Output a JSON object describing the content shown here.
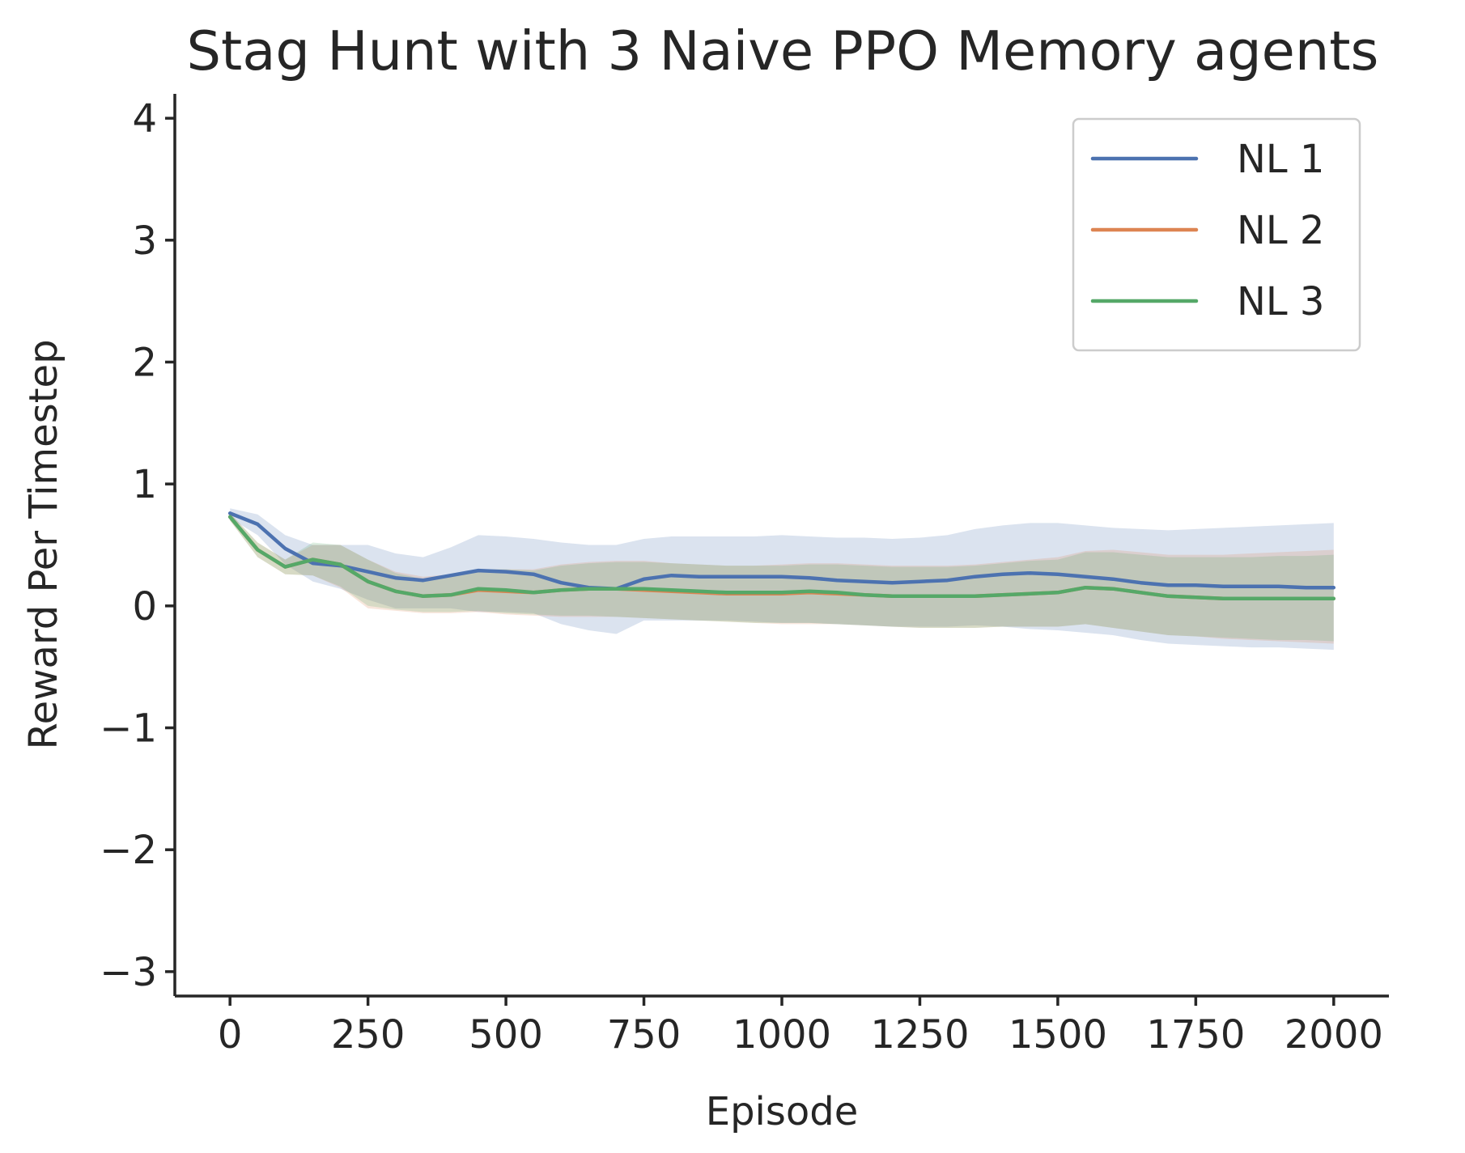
{
  "chart_data": {
    "type": "line",
    "title": "Stag Hunt with 3 Naive PPO Memory agents",
    "xlabel": "Episode",
    "ylabel": "Reward Per Timestep",
    "xlim": [
      -100,
      2100
    ],
    "ylim": [
      -3.2,
      4.2
    ],
    "xticks": [
      0,
      250,
      500,
      750,
      1000,
      1250,
      1500,
      1750,
      2000
    ],
    "yticks": [
      -3,
      -2,
      -1,
      0,
      1,
      2,
      3,
      4
    ],
    "xtick_labels": [
      "0",
      "250",
      "500",
      "750",
      "1000",
      "1250",
      "1500",
      "1750",
      "2000"
    ],
    "ytick_labels": [
      "−3",
      "−2",
      "−1",
      "0",
      "1",
      "2",
      "3",
      "4"
    ],
    "grid": false,
    "legend_position": "top-right",
    "x": [
      0,
      50,
      100,
      150,
      200,
      250,
      300,
      350,
      400,
      450,
      500,
      550,
      600,
      650,
      700,
      750,
      800,
      850,
      900,
      950,
      1000,
      1050,
      1100,
      1150,
      1200,
      1250,
      1300,
      1350,
      1400,
      1450,
      1500,
      1550,
      1600,
      1650,
      1700,
      1750,
      1800,
      1850,
      1900,
      1950,
      2000
    ],
    "series": [
      {
        "name": "NL 1",
        "color": "#4c72b0",
        "values": [
          0.76,
          0.67,
          0.47,
          0.35,
          0.33,
          0.28,
          0.23,
          0.21,
          0.25,
          0.29,
          0.28,
          0.26,
          0.19,
          0.15,
          0.14,
          0.22,
          0.25,
          0.24,
          0.24,
          0.24,
          0.24,
          0.23,
          0.21,
          0.2,
          0.19,
          0.2,
          0.21,
          0.24,
          0.26,
          0.27,
          0.26,
          0.24,
          0.22,
          0.19,
          0.17,
          0.17,
          0.16,
          0.16,
          0.16,
          0.15,
          0.15
        ],
        "lower": [
          0.72,
          0.58,
          0.34,
          0.2,
          0.14,
          0.05,
          -0.02,
          -0.02,
          -0.02,
          -0.05,
          -0.05,
          -0.06,
          -0.15,
          -0.2,
          -0.23,
          -0.12,
          -0.12,
          -0.12,
          -0.12,
          -0.13,
          -0.14,
          -0.14,
          -0.15,
          -0.16,
          -0.17,
          -0.17,
          -0.17,
          -0.16,
          -0.17,
          -0.19,
          -0.2,
          -0.22,
          -0.24,
          -0.28,
          -0.31,
          -0.32,
          -0.33,
          -0.34,
          -0.34,
          -0.35,
          -0.36
        ],
        "upper": [
          0.8,
          0.75,
          0.58,
          0.5,
          0.5,
          0.5,
          0.43,
          0.4,
          0.48,
          0.58,
          0.57,
          0.55,
          0.52,
          0.5,
          0.5,
          0.55,
          0.57,
          0.57,
          0.57,
          0.57,
          0.58,
          0.57,
          0.56,
          0.56,
          0.55,
          0.56,
          0.58,
          0.63,
          0.66,
          0.68,
          0.68,
          0.66,
          0.64,
          0.63,
          0.62,
          0.63,
          0.64,
          0.65,
          0.66,
          0.67,
          0.68
        ]
      },
      {
        "name": "NL 2",
        "color": "#dd8452",
        "values": [
          0.73,
          0.46,
          0.32,
          0.38,
          0.34,
          0.2,
          0.12,
          0.08,
          0.09,
          0.13,
          0.12,
          0.11,
          0.13,
          0.14,
          0.14,
          0.13,
          0.12,
          0.11,
          0.1,
          0.1,
          0.1,
          0.11,
          0.1,
          0.09,
          0.08,
          0.08,
          0.08,
          0.08,
          0.09,
          0.1,
          0.11,
          0.15,
          0.14,
          0.11,
          0.08,
          0.07,
          0.06,
          0.06,
          0.06,
          0.06,
          0.06
        ],
        "lower": [
          0.7,
          0.4,
          0.26,
          0.25,
          0.15,
          -0.02,
          -0.04,
          -0.06,
          -0.06,
          -0.05,
          -0.07,
          -0.08,
          -0.09,
          -0.09,
          -0.09,
          -0.1,
          -0.11,
          -0.12,
          -0.13,
          -0.14,
          -0.15,
          -0.15,
          -0.15,
          -0.16,
          -0.17,
          -0.18,
          -0.18,
          -0.18,
          -0.17,
          -0.17,
          -0.17,
          -0.15,
          -0.18,
          -0.21,
          -0.24,
          -0.25,
          -0.27,
          -0.28,
          -0.29,
          -0.3,
          -0.31
        ],
        "upper": [
          0.76,
          0.52,
          0.38,
          0.5,
          0.5,
          0.38,
          0.28,
          0.24,
          0.26,
          0.3,
          0.3,
          0.3,
          0.34,
          0.36,
          0.37,
          0.37,
          0.35,
          0.34,
          0.33,
          0.33,
          0.34,
          0.35,
          0.35,
          0.34,
          0.33,
          0.33,
          0.33,
          0.34,
          0.36,
          0.38,
          0.4,
          0.45,
          0.46,
          0.44,
          0.42,
          0.42,
          0.42,
          0.43,
          0.44,
          0.45,
          0.46
        ]
      },
      {
        "name": "NL 3",
        "color": "#55a868",
        "values": [
          0.73,
          0.46,
          0.32,
          0.38,
          0.34,
          0.2,
          0.12,
          0.08,
          0.09,
          0.14,
          0.13,
          0.11,
          0.13,
          0.14,
          0.14,
          0.14,
          0.13,
          0.12,
          0.11,
          0.11,
          0.11,
          0.12,
          0.11,
          0.09,
          0.08,
          0.08,
          0.08,
          0.08,
          0.09,
          0.1,
          0.11,
          0.15,
          0.14,
          0.11,
          0.08,
          0.07,
          0.06,
          0.06,
          0.06,
          0.06,
          0.06
        ],
        "lower": [
          0.7,
          0.4,
          0.26,
          0.25,
          0.16,
          0.0,
          -0.03,
          -0.05,
          -0.05,
          -0.04,
          -0.06,
          -0.07,
          -0.08,
          -0.08,
          -0.09,
          -0.1,
          -0.11,
          -0.12,
          -0.13,
          -0.14,
          -0.14,
          -0.14,
          -0.15,
          -0.16,
          -0.17,
          -0.18,
          -0.18,
          -0.18,
          -0.17,
          -0.17,
          -0.17,
          -0.15,
          -0.18,
          -0.21,
          -0.24,
          -0.25,
          -0.26,
          -0.27,
          -0.28,
          -0.28,
          -0.29
        ],
        "upper": [
          0.76,
          0.52,
          0.38,
          0.52,
          0.5,
          0.38,
          0.27,
          0.22,
          0.24,
          0.3,
          0.3,
          0.29,
          0.33,
          0.35,
          0.36,
          0.36,
          0.35,
          0.34,
          0.33,
          0.33,
          0.33,
          0.34,
          0.34,
          0.33,
          0.32,
          0.32,
          0.32,
          0.33,
          0.35,
          0.37,
          0.38,
          0.44,
          0.44,
          0.42,
          0.4,
          0.4,
          0.4,
          0.4,
          0.41,
          0.41,
          0.42
        ]
      }
    ]
  }
}
